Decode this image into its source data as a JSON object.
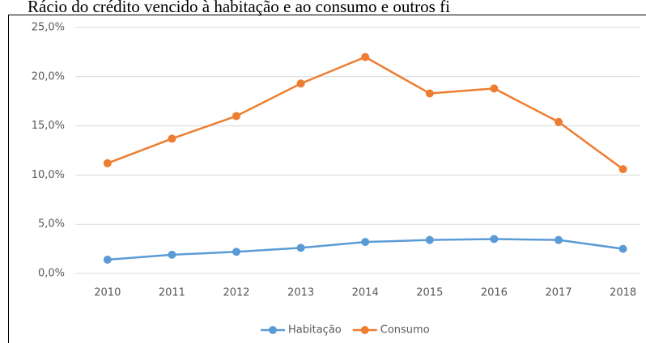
{
  "chart_data": {
    "type": "line",
    "title": "Rácio do crédito vencido à habitação e ao consumo e outros fi",
    "categories": [
      "2010",
      "2011",
      "2012",
      "2013",
      "2014",
      "2015",
      "2016",
      "2017",
      "2018"
    ],
    "series": [
      {
        "name": "Habitação",
        "color": "#5b9bd5",
        "values": [
          1.4,
          1.9,
          2.2,
          2.6,
          3.2,
          3.4,
          3.5,
          3.4,
          2.5
        ]
      },
      {
        "name": "Consumo",
        "color": "#ed7d31",
        "values": [
          11.2,
          13.7,
          16.0,
          19.3,
          22.0,
          18.3,
          18.8,
          15.4,
          10.6
        ]
      }
    ],
    "ylim": [
      0,
      25
    ],
    "yticks": [
      {
        "value": 0,
        "label": "0,0%"
      },
      {
        "value": 5,
        "label": "5,0%"
      },
      {
        "value": 10,
        "label": "10,0%"
      },
      {
        "value": 15,
        "label": "15,0%"
      },
      {
        "value": 20,
        "label": "20,0%"
      },
      {
        "value": 25,
        "label": "25,0%"
      }
    ],
    "grid": true,
    "legend": "bottom"
  }
}
